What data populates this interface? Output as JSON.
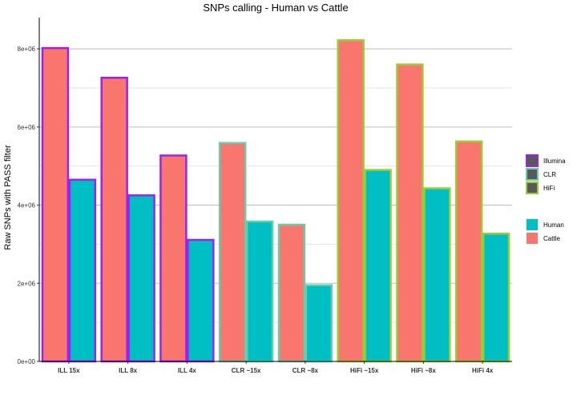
{
  "chart_data": {
    "type": "bar",
    "title": "SNPs calling - Human vs Cattle",
    "xlabel": "",
    "ylabel": "Raw SNPs with PASS filter",
    "ylim": [
      0,
      8800000
    ],
    "yticks": [
      0,
      2000000,
      4000000,
      6000000,
      8000000
    ],
    "ytick_labels": [
      "0e+00",
      "2e+06",
      "4e+06",
      "6e+06",
      "8e+06"
    ],
    "categories": [
      "ILL 15x",
      "ILL 8x",
      "ILL 4x",
      "CLR ~15x",
      "CLR ~8x",
      "HiFi ~15x",
      "HiFi ~8x",
      "HiFi 4x"
    ],
    "platform": [
      "Illumina",
      "Illumina",
      "Illumina",
      "CLR",
      "CLR",
      "HiFi",
      "HiFi",
      "HiFi"
    ],
    "series": [
      {
        "name": "Cattle",
        "values": [
          8020000,
          7260000,
          5270000,
          5590000,
          3500000,
          8220000,
          7600000,
          5630000
        ]
      },
      {
        "name": "Human",
        "values": [
          4650000,
          4250000,
          3110000,
          3580000,
          1950000,
          4900000,
          4430000,
          3270000
        ]
      }
    ],
    "grid": true,
    "legend_placement": "right",
    "legend_outline": {
      "entries": [
        {
          "label": "Illumina",
          "color": "#a020f0"
        },
        {
          "label": "CLR",
          "color": "#66cdaa"
        },
        {
          "label": "HiFi",
          "color": "#9acd32"
        }
      ]
    },
    "legend_fill": {
      "entries": [
        {
          "label": "Human",
          "color": "#00bfc4"
        },
        {
          "label": "Cattle",
          "color": "#f8766d"
        }
      ]
    },
    "fill_colors": {
      "Cattle": "#f8766d",
      "Human": "#00bfc4"
    }
  }
}
